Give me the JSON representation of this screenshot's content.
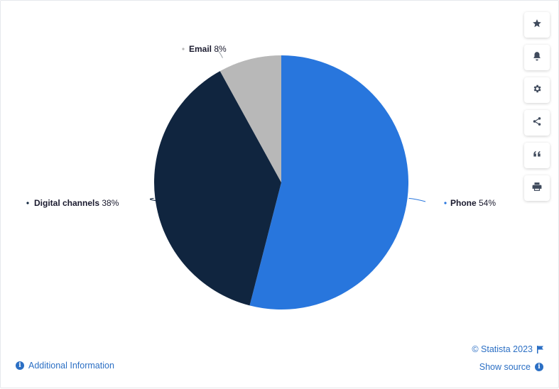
{
  "chart_data": {
    "type": "pie",
    "slices": [
      {
        "name": "Phone",
        "value": 54,
        "label": "54%",
        "color": "#2876dd"
      },
      {
        "name": "Digital channels",
        "value": 38,
        "label": "38%",
        "color": "#10253f"
      },
      {
        "name": "Email",
        "value": 8,
        "label": "8%",
        "color": "#b8b8b8"
      }
    ]
  },
  "toolbar": {
    "buttons": [
      {
        "icon": "star-icon"
      },
      {
        "icon": "bell-icon"
      },
      {
        "icon": "gear-icon"
      },
      {
        "icon": "share-icon"
      },
      {
        "icon": "quote-icon"
      },
      {
        "icon": "print-icon"
      }
    ]
  },
  "footer": {
    "additional_info": "Additional Information",
    "credits": "© Statista 2023",
    "show_source": "Show source"
  },
  "colors": {
    "accent": "#2b6fc4",
    "leader": "#9aa0a6"
  }
}
